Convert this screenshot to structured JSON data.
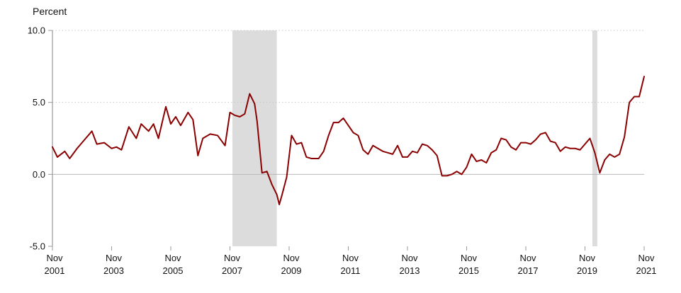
{
  "chart_data": {
    "type": "line",
    "title": "",
    "ylabel": "Percent",
    "xlabel": "",
    "ylim": [
      -5.0,
      10.0
    ],
    "y_ticks": [
      {
        "value": 10.0,
        "label": "10.0"
      },
      {
        "value": 5.0,
        "label": "5.0"
      },
      {
        "value": 0.0,
        "label": "0.0"
      },
      {
        "value": -5.0,
        "label": "-5.0"
      }
    ],
    "x_range": [
      "2001-11",
      "2021-11"
    ],
    "x_ticks": [
      {
        "date": "2001-11",
        "month": "Nov",
        "year": "2001"
      },
      {
        "date": "2003-11",
        "month": "Nov",
        "year": "2003"
      },
      {
        "date": "2005-11",
        "month": "Nov",
        "year": "2005"
      },
      {
        "date": "2007-11",
        "month": "Nov",
        "year": "2007"
      },
      {
        "date": "2009-11",
        "month": "Nov",
        "year": "2009"
      },
      {
        "date": "2011-11",
        "month": "Nov",
        "year": "2011"
      },
      {
        "date": "2013-11",
        "month": "Nov",
        "year": "2013"
      },
      {
        "date": "2015-11",
        "month": "Nov",
        "year": "2015"
      },
      {
        "date": "2017-11",
        "month": "Nov",
        "year": "2017"
      },
      {
        "date": "2019-11",
        "month": "Nov",
        "year": "2019"
      },
      {
        "date": "2021-11",
        "month": "Nov",
        "year": "2021"
      }
    ],
    "grid": true,
    "line_color": "#8b0000",
    "recession_color": "#dcdcdc",
    "gridline_color": "#c8c8c8",
    "recessions": [
      {
        "start": "2007-12",
        "end": "2009-06"
      },
      {
        "start": "2020-02",
        "end": "2020-04"
      }
    ],
    "series": [
      {
        "values": [
          {
            "x": "2001-11",
            "y": 1.9
          },
          {
            "x": "2002-01",
            "y": 1.2
          },
          {
            "x": "2002-04",
            "y": 1.6
          },
          {
            "x": "2002-06",
            "y": 1.1
          },
          {
            "x": "2002-09",
            "y": 1.8
          },
          {
            "x": "2002-12",
            "y": 2.4
          },
          {
            "x": "2003-03",
            "y": 3.0
          },
          {
            "x": "2003-05",
            "y": 2.1
          },
          {
            "x": "2003-08",
            "y": 2.2
          },
          {
            "x": "2003-11",
            "y": 1.8
          },
          {
            "x": "2004-01",
            "y": 1.9
          },
          {
            "x": "2004-03",
            "y": 1.7
          },
          {
            "x": "2004-06",
            "y": 3.3
          },
          {
            "x": "2004-09",
            "y": 2.5
          },
          {
            "x": "2004-11",
            "y": 3.5
          },
          {
            "x": "2005-02",
            "y": 3.0
          },
          {
            "x": "2005-04",
            "y": 3.5
          },
          {
            "x": "2005-06",
            "y": 2.5
          },
          {
            "x": "2005-09",
            "y": 4.7
          },
          {
            "x": "2005-11",
            "y": 3.5
          },
          {
            "x": "2006-01",
            "y": 4.0
          },
          {
            "x": "2006-03",
            "y": 3.4
          },
          {
            "x": "2006-06",
            "y": 4.3
          },
          {
            "x": "2006-08",
            "y": 3.8
          },
          {
            "x": "2006-10",
            "y": 1.3
          },
          {
            "x": "2006-12",
            "y": 2.5
          },
          {
            "x": "2007-03",
            "y": 2.8
          },
          {
            "x": "2007-06",
            "y": 2.7
          },
          {
            "x": "2007-09",
            "y": 2.0
          },
          {
            "x": "2007-11",
            "y": 4.3
          },
          {
            "x": "2008-01",
            "y": 4.1
          },
          {
            "x": "2008-03",
            "y": 4.0
          },
          {
            "x": "2008-05",
            "y": 4.2
          },
          {
            "x": "2008-07",
            "y": 5.6
          },
          {
            "x": "2008-09",
            "y": 4.9
          },
          {
            "x": "2008-10",
            "y": 3.7
          },
          {
            "x": "2008-12",
            "y": 0.1
          },
          {
            "x": "2009-02",
            "y": 0.2
          },
          {
            "x": "2009-04",
            "y": -0.7
          },
          {
            "x": "2009-06",
            "y": -1.4
          },
          {
            "x": "2009-07",
            "y": -2.1
          },
          {
            "x": "2009-08",
            "y": -1.5
          },
          {
            "x": "2009-10",
            "y": -0.2
          },
          {
            "x": "2009-12",
            "y": 2.7
          },
          {
            "x": "2010-02",
            "y": 2.1
          },
          {
            "x": "2010-04",
            "y": 2.2
          },
          {
            "x": "2010-06",
            "y": 1.2
          },
          {
            "x": "2010-08",
            "y": 1.1
          },
          {
            "x": "2010-11",
            "y": 1.1
          },
          {
            "x": "2011-01",
            "y": 1.6
          },
          {
            "x": "2011-03",
            "y": 2.7
          },
          {
            "x": "2011-05",
            "y": 3.6
          },
          {
            "x": "2011-07",
            "y": 3.6
          },
          {
            "x": "2011-09",
            "y": 3.9
          },
          {
            "x": "2011-11",
            "y": 3.4
          },
          {
            "x": "2012-01",
            "y": 2.9
          },
          {
            "x": "2012-03",
            "y": 2.7
          },
          {
            "x": "2012-05",
            "y": 1.7
          },
          {
            "x": "2012-07",
            "y": 1.4
          },
          {
            "x": "2012-09",
            "y": 2.0
          },
          {
            "x": "2012-11",
            "y": 1.8
          },
          {
            "x": "2013-01",
            "y": 1.6
          },
          {
            "x": "2013-03",
            "y": 1.5
          },
          {
            "x": "2013-05",
            "y": 1.4
          },
          {
            "x": "2013-07",
            "y": 2.0
          },
          {
            "x": "2013-09",
            "y": 1.2
          },
          {
            "x": "2013-11",
            "y": 1.2
          },
          {
            "x": "2014-01",
            "y": 1.6
          },
          {
            "x": "2014-03",
            "y": 1.5
          },
          {
            "x": "2014-05",
            "y": 2.1
          },
          {
            "x": "2014-07",
            "y": 2.0
          },
          {
            "x": "2014-09",
            "y": 1.7
          },
          {
            "x": "2014-11",
            "y": 1.3
          },
          {
            "x": "2015-01",
            "y": -0.1
          },
          {
            "x": "2015-03",
            "y": -0.1
          },
          {
            "x": "2015-05",
            "y": 0.0
          },
          {
            "x": "2015-07",
            "y": 0.2
          },
          {
            "x": "2015-09",
            "y": 0.0
          },
          {
            "x": "2015-11",
            "y": 0.5
          },
          {
            "x": "2016-01",
            "y": 1.4
          },
          {
            "x": "2016-03",
            "y": 0.9
          },
          {
            "x": "2016-05",
            "y": 1.0
          },
          {
            "x": "2016-07",
            "y": 0.8
          },
          {
            "x": "2016-09",
            "y": 1.5
          },
          {
            "x": "2016-11",
            "y": 1.7
          },
          {
            "x": "2017-01",
            "y": 2.5
          },
          {
            "x": "2017-03",
            "y": 2.4
          },
          {
            "x": "2017-05",
            "y": 1.9
          },
          {
            "x": "2017-07",
            "y": 1.7
          },
          {
            "x": "2017-09",
            "y": 2.2
          },
          {
            "x": "2017-11",
            "y": 2.2
          },
          {
            "x": "2018-01",
            "y": 2.1
          },
          {
            "x": "2018-03",
            "y": 2.4
          },
          {
            "x": "2018-05",
            "y": 2.8
          },
          {
            "x": "2018-07",
            "y": 2.9
          },
          {
            "x": "2018-09",
            "y": 2.3
          },
          {
            "x": "2018-11",
            "y": 2.2
          },
          {
            "x": "2019-01",
            "y": 1.6
          },
          {
            "x": "2019-03",
            "y": 1.9
          },
          {
            "x": "2019-05",
            "y": 1.8
          },
          {
            "x": "2019-07",
            "y": 1.8
          },
          {
            "x": "2019-09",
            "y": 1.7
          },
          {
            "x": "2019-11",
            "y": 2.1
          },
          {
            "x": "2020-01",
            "y": 2.5
          },
          {
            "x": "2020-03",
            "y": 1.5
          },
          {
            "x": "2020-05",
            "y": 0.1
          },
          {
            "x": "2020-07",
            "y": 1.0
          },
          {
            "x": "2020-09",
            "y": 1.4
          },
          {
            "x": "2020-11",
            "y": 1.2
          },
          {
            "x": "2021-01",
            "y": 1.4
          },
          {
            "x": "2021-03",
            "y": 2.6
          },
          {
            "x": "2021-05",
            "y": 5.0
          },
          {
            "x": "2021-07",
            "y": 5.4
          },
          {
            "x": "2021-09",
            "y": 5.4
          },
          {
            "x": "2021-11",
            "y": 6.8
          }
        ]
      }
    ]
  }
}
